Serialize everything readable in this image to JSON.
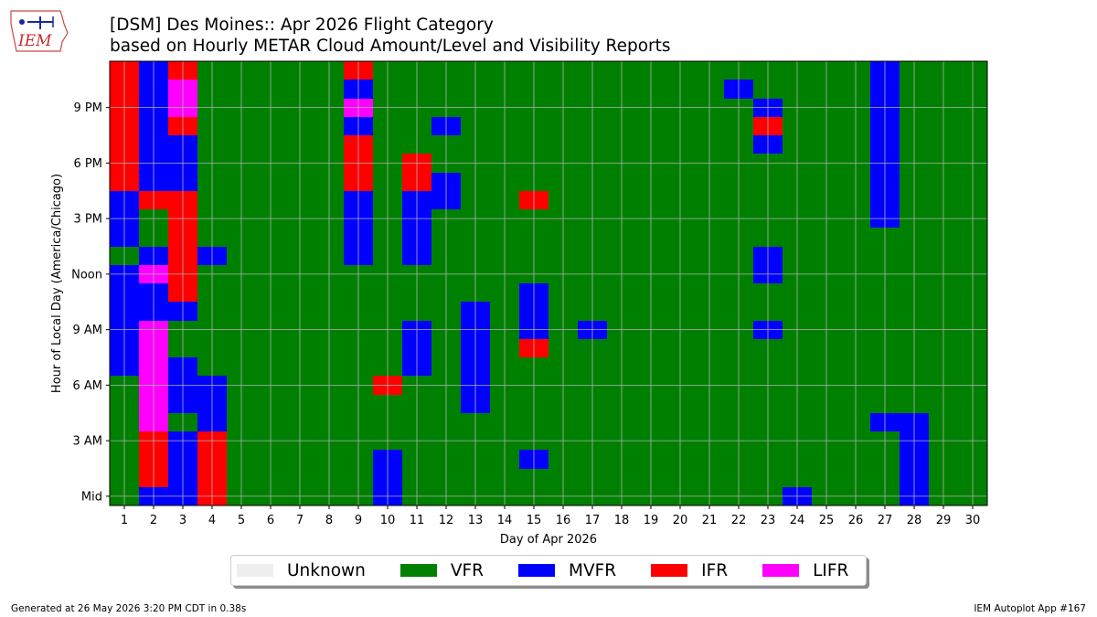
{
  "header": {
    "logo_text": "IEM",
    "title_line1": "[DSM] Des Moines:: Apr 2026 Flight Category",
    "title_line2": "based on Hourly METAR Cloud Amount/Level and Visibility Reports"
  },
  "footer": {
    "generated": "Generated at 26 May 2026 3:20 PM CDT in 0.38s",
    "app": "IEM Autoplot App #167"
  },
  "colors": {
    "Unknown": "#eeeeee",
    "VFR": "#008000",
    "MVFR": "#0000ff",
    "IFR": "#ff0000",
    "LIFR": "#ff00ff"
  },
  "chart_data": {
    "type": "heatmap",
    "xlabel": "Day of Apr 2026",
    "ylabel": "Hour of Local Day (America/Chicago)",
    "x_ticks": [
      1,
      2,
      3,
      4,
      5,
      6,
      7,
      8,
      9,
      10,
      11,
      12,
      13,
      14,
      15,
      16,
      17,
      18,
      19,
      20,
      21,
      22,
      23,
      24,
      25,
      26,
      27,
      28,
      29,
      30
    ],
    "x_range": [
      0.5,
      30.5
    ],
    "y_range": [
      -0.5,
      23.5
    ],
    "y_ticks": [
      {
        "hour": 0,
        "label": "Mid"
      },
      {
        "hour": 3,
        "label": "3 AM"
      },
      {
        "hour": 6,
        "label": "6 AM"
      },
      {
        "hour": 9,
        "label": "9 AM"
      },
      {
        "hour": 12,
        "label": "Noon"
      },
      {
        "hour": 15,
        "label": "3 PM"
      },
      {
        "hour": 18,
        "label": "6 PM"
      },
      {
        "hour": 21,
        "label": "9 PM"
      }
    ],
    "grid": true,
    "default_category": "VFR",
    "legend": [
      "Unknown",
      "VFR",
      "MVFR",
      "IFR",
      "LIFR"
    ],
    "legend_position": "bottom-center",
    "cells": [
      {
        "day": 1,
        "start": 7,
        "end": 12,
        "category": "MVFR"
      },
      {
        "day": 1,
        "start": 14,
        "end": 16,
        "category": "MVFR"
      },
      {
        "day": 1,
        "start": 17,
        "end": 23,
        "category": "IFR"
      },
      {
        "day": 2,
        "start": 0,
        "end": 0,
        "category": "MVFR"
      },
      {
        "day": 2,
        "start": 1,
        "end": 3,
        "category": "IFR"
      },
      {
        "day": 2,
        "start": 4,
        "end": 9,
        "category": "LIFR"
      },
      {
        "day": 2,
        "start": 10,
        "end": 11,
        "category": "MVFR"
      },
      {
        "day": 2,
        "start": 12,
        "end": 12,
        "category": "LIFR"
      },
      {
        "day": 2,
        "start": 13,
        "end": 13,
        "category": "MVFR"
      },
      {
        "day": 2,
        "start": 16,
        "end": 16,
        "category": "IFR"
      },
      {
        "day": 2,
        "start": 17,
        "end": 23,
        "category": "MVFR"
      },
      {
        "day": 3,
        "start": 0,
        "end": 3,
        "category": "MVFR"
      },
      {
        "day": 3,
        "start": 5,
        "end": 7,
        "category": "MVFR"
      },
      {
        "day": 3,
        "start": 10,
        "end": 10,
        "category": "MVFR"
      },
      {
        "day": 3,
        "start": 11,
        "end": 16,
        "category": "IFR"
      },
      {
        "day": 3,
        "start": 17,
        "end": 19,
        "category": "MVFR"
      },
      {
        "day": 3,
        "start": 20,
        "end": 20,
        "category": "IFR"
      },
      {
        "day": 3,
        "start": 21,
        "end": 22,
        "category": "LIFR"
      },
      {
        "day": 3,
        "start": 23,
        "end": 23,
        "category": "IFR"
      },
      {
        "day": 4,
        "start": 0,
        "end": 3,
        "category": "IFR"
      },
      {
        "day": 4,
        "start": 4,
        "end": 6,
        "category": "MVFR"
      },
      {
        "day": 4,
        "start": 13,
        "end": 13,
        "category": "MVFR"
      },
      {
        "day": 9,
        "start": 13,
        "end": 16,
        "category": "MVFR"
      },
      {
        "day": 9,
        "start": 17,
        "end": 19,
        "category": "IFR"
      },
      {
        "day": 9,
        "start": 20,
        "end": 20,
        "category": "MVFR"
      },
      {
        "day": 9,
        "start": 21,
        "end": 21,
        "category": "LIFR"
      },
      {
        "day": 9,
        "start": 22,
        "end": 22,
        "category": "MVFR"
      },
      {
        "day": 9,
        "start": 23,
        "end": 23,
        "category": "IFR"
      },
      {
        "day": 10,
        "start": 0,
        "end": 2,
        "category": "MVFR"
      },
      {
        "day": 10,
        "start": 6,
        "end": 6,
        "category": "IFR"
      },
      {
        "day": 11,
        "start": 7,
        "end": 9,
        "category": "MVFR"
      },
      {
        "day": 11,
        "start": 13,
        "end": 16,
        "category": "MVFR"
      },
      {
        "day": 11,
        "start": 17,
        "end": 18,
        "category": "IFR"
      },
      {
        "day": 12,
        "start": 16,
        "end": 17,
        "category": "MVFR"
      },
      {
        "day": 12,
        "start": 20,
        "end": 20,
        "category": "MVFR"
      },
      {
        "day": 13,
        "start": 5,
        "end": 10,
        "category": "MVFR"
      },
      {
        "day": 15,
        "start": 2,
        "end": 2,
        "category": "MVFR"
      },
      {
        "day": 15,
        "start": 8,
        "end": 8,
        "category": "IFR"
      },
      {
        "day": 15,
        "start": 9,
        "end": 11,
        "category": "MVFR"
      },
      {
        "day": 15,
        "start": 16,
        "end": 16,
        "category": "IFR"
      },
      {
        "day": 17,
        "start": 9,
        "end": 9,
        "category": "MVFR"
      },
      {
        "day": 22,
        "start": 22,
        "end": 22,
        "category": "MVFR"
      },
      {
        "day": 23,
        "start": 9,
        "end": 9,
        "category": "MVFR"
      },
      {
        "day": 23,
        "start": 12,
        "end": 13,
        "category": "MVFR"
      },
      {
        "day": 23,
        "start": 19,
        "end": 19,
        "category": "MVFR"
      },
      {
        "day": 23,
        "start": 20,
        "end": 20,
        "category": "IFR"
      },
      {
        "day": 23,
        "start": 21,
        "end": 21,
        "category": "MVFR"
      },
      {
        "day": 24,
        "start": 0,
        "end": 0,
        "category": "MVFR"
      },
      {
        "day": 27,
        "start": 4,
        "end": 4,
        "category": "MVFR"
      },
      {
        "day": 27,
        "start": 15,
        "end": 23,
        "category": "MVFR"
      },
      {
        "day": 28,
        "start": 0,
        "end": 4,
        "category": "MVFR"
      }
    ]
  }
}
